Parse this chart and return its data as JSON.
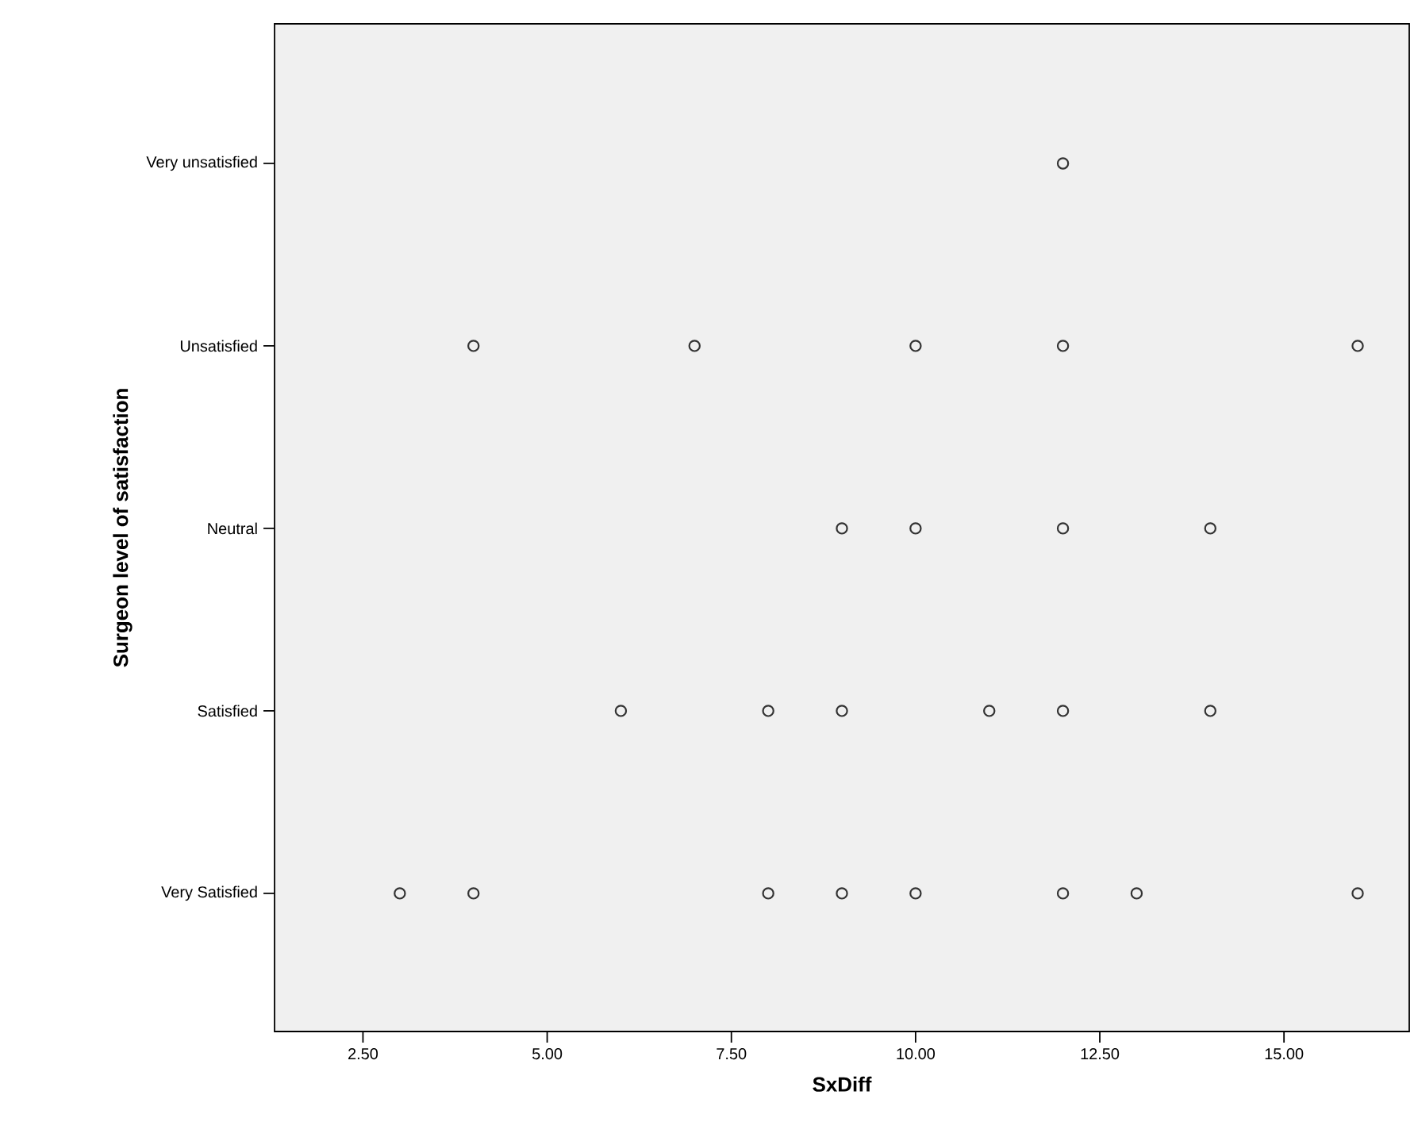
{
  "chart_data": {
    "type": "scatter",
    "orientation": "horizontal",
    "xlabel": "SxDiff",
    "ylabel": "Surgeon level of satisfaction",
    "categories": [
      "Very unsatisfied",
      "Unsatisfied",
      "Neutral",
      "Satisfied",
      "Very Satisfied"
    ],
    "xlim": [
      1.3,
      16.7
    ],
    "xticks": [
      {
        "value": 2.5,
        "label": "2.50"
      },
      {
        "value": 5,
        "label": "5.00"
      },
      {
        "value": 7.5,
        "label": "7.50"
      },
      {
        "value": 10,
        "label": "10.00"
      },
      {
        "value": 12.5,
        "label": "12.50"
      },
      {
        "value": 15,
        "label": "15.00"
      }
    ],
    "marker": "circle",
    "grid": false,
    "series": [
      {
        "color": "#333333",
        "values": [
          12,
          4,
          9,
          6,
          3
        ]
      },
      {
        "color": "#333333",
        "values": [
          null,
          7,
          10,
          8,
          4
        ]
      },
      {
        "color": "#333333",
        "values": [
          null,
          10,
          12,
          9,
          8
        ]
      },
      {
        "color": "#333333",
        "values": [
          null,
          12,
          14,
          11,
          9
        ]
      },
      {
        "color": "#333333",
        "values": [
          null,
          16,
          null,
          12,
          10
        ]
      },
      {
        "color": "#333333",
        "values": [
          null,
          null,
          null,
          14,
          12
        ]
      },
      {
        "color": "#333333",
        "values": [
          null,
          null,
          null,
          null,
          13
        ]
      },
      {
        "color": "#333333",
        "values": [
          null,
          null,
          null,
          null,
          16
        ]
      }
    ]
  }
}
